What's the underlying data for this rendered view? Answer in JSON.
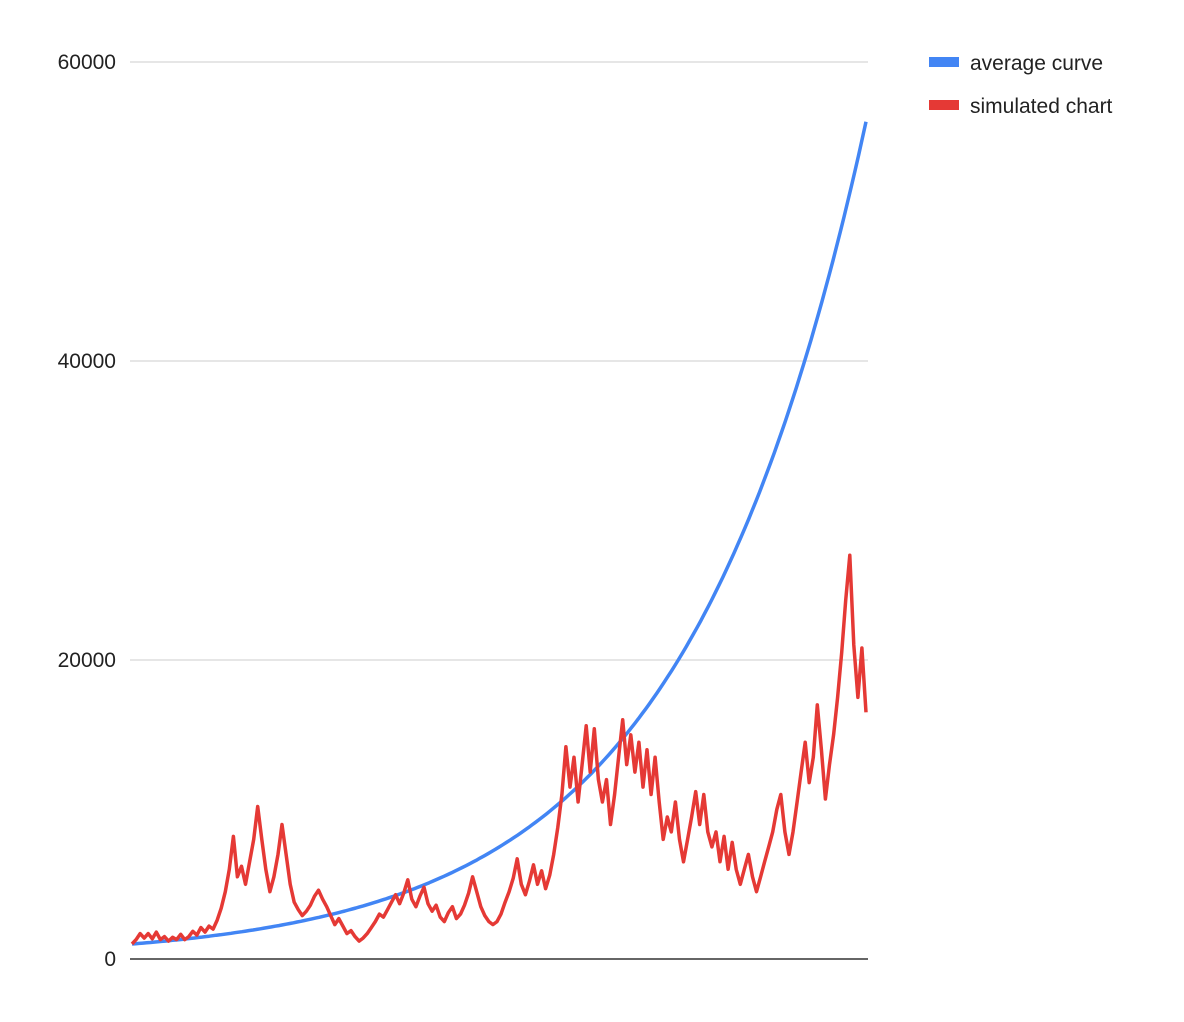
{
  "chart_data": {
    "type": "line",
    "title": "",
    "xlabel": "",
    "ylabel": "",
    "ylim": [
      0,
      60000
    ],
    "y_ticks": [
      {
        "value": 0,
        "label": "0"
      },
      {
        "value": 20000,
        "label": "20000"
      },
      {
        "value": 40000,
        "label": "40000"
      },
      {
        "value": 60000,
        "label": "60000"
      }
    ],
    "grid": true,
    "legend_position": "top-right",
    "series": [
      {
        "name": "average curve",
        "color": "#4285f4",
        "growth": "exponential",
        "start": 1000,
        "end": 56000
      },
      {
        "name": "simulated chart",
        "color": "#e53935",
        "values": [
          1000,
          1300,
          1700,
          1400,
          1700,
          1350,
          1800,
          1300,
          1500,
          1200,
          1450,
          1300,
          1650,
          1300,
          1500,
          1850,
          1600,
          2100,
          1800,
          2200,
          2000,
          2600,
          3400,
          4500,
          6000,
          8200,
          5500,
          6200,
          5000,
          6500,
          8000,
          10200,
          8000,
          6000,
          4500,
          5500,
          7000,
          9000,
          7000,
          5000,
          3800,
          3300,
          2900,
          3200,
          3600,
          4200,
          4600,
          4000,
          3500,
          2900,
          2300,
          2700,
          2200,
          1700,
          1900,
          1500,
          1200,
          1400,
          1700,
          2100,
          2500,
          3000,
          2800,
          3300,
          3800,
          4300,
          3700,
          4400,
          5300,
          4000,
          3500,
          4200,
          4800,
          3700,
          3200,
          3600,
          2800,
          2500,
          3100,
          3500,
          2700,
          3000,
          3600,
          4400,
          5500,
          4500,
          3500,
          2900,
          2500,
          2300,
          2500,
          3000,
          3800,
          4500,
          5400,
          6700,
          5000,
          4300,
          5200,
          6300,
          5000,
          5900,
          4700,
          5600,
          7000,
          8800,
          11000,
          14200,
          11500,
          13500,
          10500,
          13000,
          15600,
          12500,
          15400,
          12000,
          10500,
          12000,
          9000,
          11000,
          13500,
          16000,
          13000,
          15000,
          12500,
          14500,
          11500,
          14000,
          11000,
          13500,
          10500,
          8000,
          9500,
          8500,
          10500,
          8000,
          6500,
          8000,
          9500,
          11200,
          9000,
          11000,
          8500,
          7500,
          8500,
          6500,
          8200,
          6000,
          7800,
          6000,
          5000,
          6000,
          7000,
          5500,
          4500,
          5500,
          6500,
          7500,
          8500,
          10000,
          11000,
          8500,
          7000,
          8500,
          10500,
          12500,
          14500,
          11800,
          13500,
          17000,
          14000,
          10700,
          13000,
          15000,
          17500,
          20500,
          24000,
          27000,
          21000,
          17500,
          20800,
          16500
        ]
      }
    ]
  }
}
